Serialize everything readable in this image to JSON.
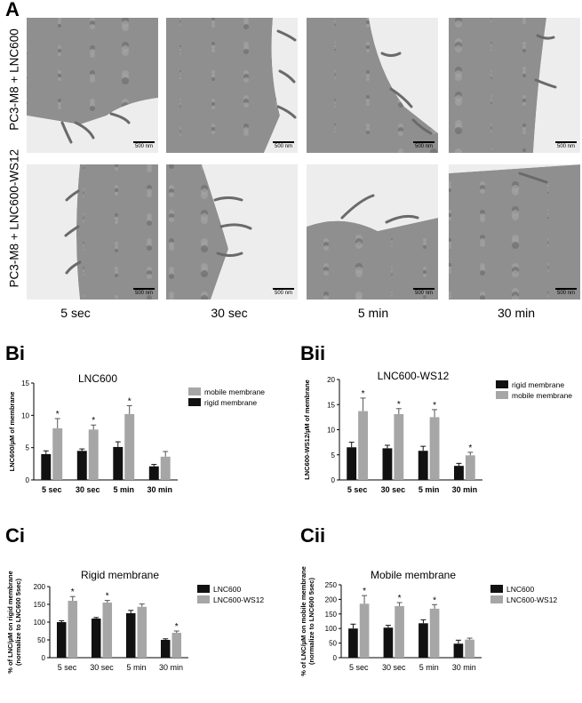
{
  "panel_a": {
    "letter": "A",
    "row_labels": [
      "PC3-M8 + LNC600",
      "PC3-M8 + LNC600-WS12"
    ],
    "time_labels": [
      "5 sec",
      "30 sec",
      "5 min",
      "30 min"
    ],
    "scale_labels": [
      "500 nm",
      "500 nm",
      "500 nm",
      "500 nm",
      "500 nm",
      "500 nm",
      "500 nm",
      "500 nm"
    ]
  },
  "panel_bi": {
    "letter": "Bi"
  },
  "panel_bii": {
    "letter": "Bii"
  },
  "panel_ci": {
    "letter": "Ci"
  },
  "panel_cii": {
    "letter": "Cii"
  },
  "colors": {
    "black_bar": "#111111",
    "gray_bar": "#a6a6a6"
  },
  "chart_data": [
    {
      "id": "Bi",
      "type": "bar",
      "title": "LNC600",
      "ylabel": "LNC600/µM of membrane",
      "xlabel": "",
      "categories": [
        "5 sec",
        "30 sec",
        "5 min",
        "30 min"
      ],
      "yticks": [
        0,
        5,
        10,
        15
      ],
      "ylim": [
        0,
        15
      ],
      "legend_position": "right",
      "legend_order": [
        "mobile membrane",
        "rigid membrane"
      ],
      "series": [
        {
          "name": "rigid membrane",
          "color": "#111111",
          "values": [
            4.0,
            4.5,
            5.1,
            2.1
          ],
          "errors": [
            0.5,
            0.3,
            0.8,
            0.3
          ],
          "significant": [
            false,
            false,
            false,
            false
          ]
        },
        {
          "name": "mobile membrane",
          "color": "#a6a6a6",
          "values": [
            8.0,
            7.8,
            10.2,
            3.6
          ],
          "errors": [
            1.5,
            0.7,
            1.3,
            0.8
          ],
          "significant": [
            true,
            true,
            true,
            false
          ]
        }
      ],
      "significance_marker": "*"
    },
    {
      "id": "Bii",
      "type": "bar",
      "title": "LNC600-WS12",
      "ylabel": "LNC600-WS12/µM of membrane",
      "xlabel": "",
      "categories": [
        "5 sec",
        "30 sec",
        "5 min",
        "30 min"
      ],
      "yticks": [
        0,
        5,
        10,
        15,
        20
      ],
      "ylim": [
        0,
        20
      ],
      "legend_position": "right",
      "legend_order": [
        "rigid membrane",
        "mobile membrane"
      ],
      "series": [
        {
          "name": "rigid membrane",
          "color": "#111111",
          "values": [
            6.5,
            6.3,
            5.8,
            2.8
          ],
          "errors": [
            1.0,
            0.6,
            0.9,
            0.5
          ],
          "significant": [
            false,
            false,
            false,
            false
          ]
        },
        {
          "name": "mobile membrane",
          "color": "#a6a6a6",
          "values": [
            13.7,
            13.1,
            12.5,
            4.9
          ],
          "errors": [
            2.6,
            1.1,
            1.5,
            0.6
          ],
          "significant": [
            true,
            true,
            true,
            true
          ]
        }
      ],
      "significance_marker": "*"
    },
    {
      "id": "Ci",
      "type": "bar",
      "title": "Rigid membrane",
      "ylabel": "% of LNC/µM on rigid membrane (normalize to LNC600 5sec)",
      "xlabel": "",
      "categories": [
        "5 sec",
        "30 sec",
        "5 min",
        "30 min"
      ],
      "yticks": [
        0,
        50,
        100,
        150,
        200
      ],
      "ylim": [
        0,
        200
      ],
      "legend_position": "right",
      "legend_order": [
        "LNC600",
        "LNC600-WS12"
      ],
      "series": [
        {
          "name": "LNC600",
          "color": "#111111",
          "values": [
            100,
            110,
            125,
            50
          ],
          "errors": [
            4,
            3,
            8,
            3
          ],
          "significant": [
            false,
            false,
            false,
            false
          ]
        },
        {
          "name": "LNC600-WS12",
          "color": "#a6a6a6",
          "values": [
            160,
            155,
            143,
            70
          ],
          "errors": [
            12,
            6,
            8,
            5
          ],
          "significant": [
            true,
            true,
            false,
            true
          ]
        }
      ],
      "significance_marker": "*"
    },
    {
      "id": "Cii",
      "type": "bar",
      "title": "Mobile membrane",
      "ylabel": "% of LNC/µM on mobile membrane (normalize to LNC600 5sec)",
      "xlabel": "",
      "categories": [
        "5 sec",
        "30 sec",
        "5 min",
        "30 min"
      ],
      "yticks": [
        0,
        50,
        100,
        150,
        200,
        250
      ],
      "ylim": [
        0,
        250
      ],
      "legend_position": "right",
      "legend_order": [
        "LNC600",
        "LNC600-WS12"
      ],
      "series": [
        {
          "name": "LNC600",
          "color": "#111111",
          "values": [
            100,
            103,
            118,
            48
          ],
          "errors": [
            15,
            8,
            12,
            12
          ],
          "significant": [
            false,
            false,
            false,
            false
          ]
        },
        {
          "name": "LNC600-WS12",
          "color": "#a6a6a6",
          "values": [
            185,
            177,
            168,
            62
          ],
          "errors": [
            28,
            12,
            14,
            5
          ],
          "significant": [
            true,
            true,
            true,
            false
          ]
        }
      ],
      "significance_marker": "*"
    }
  ]
}
